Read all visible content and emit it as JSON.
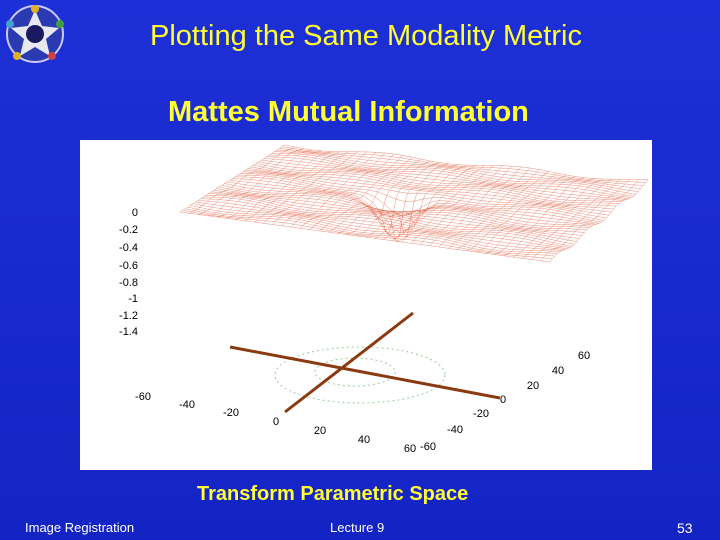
{
  "header": {
    "title": "Plotting the Same Modality Metric"
  },
  "subtitle": "Mattes Mutual Information",
  "figure": {
    "z_ticks": [
      "0",
      "-0.2",
      "-0.4",
      "-0.6",
      "-0.8",
      "-1",
      "-1.2",
      "-1.4"
    ],
    "x_ticks": [
      "-60",
      "-40",
      "-20",
      "0",
      "20",
      "40",
      "60"
    ],
    "y_ticks": [
      "-60",
      "-40",
      "-20",
      "0",
      "20",
      "40",
      "60"
    ]
  },
  "caption": "Transform Parametric Space",
  "footer": {
    "left": "Image Registration",
    "center": "Lecture 9",
    "right": "53"
  }
}
